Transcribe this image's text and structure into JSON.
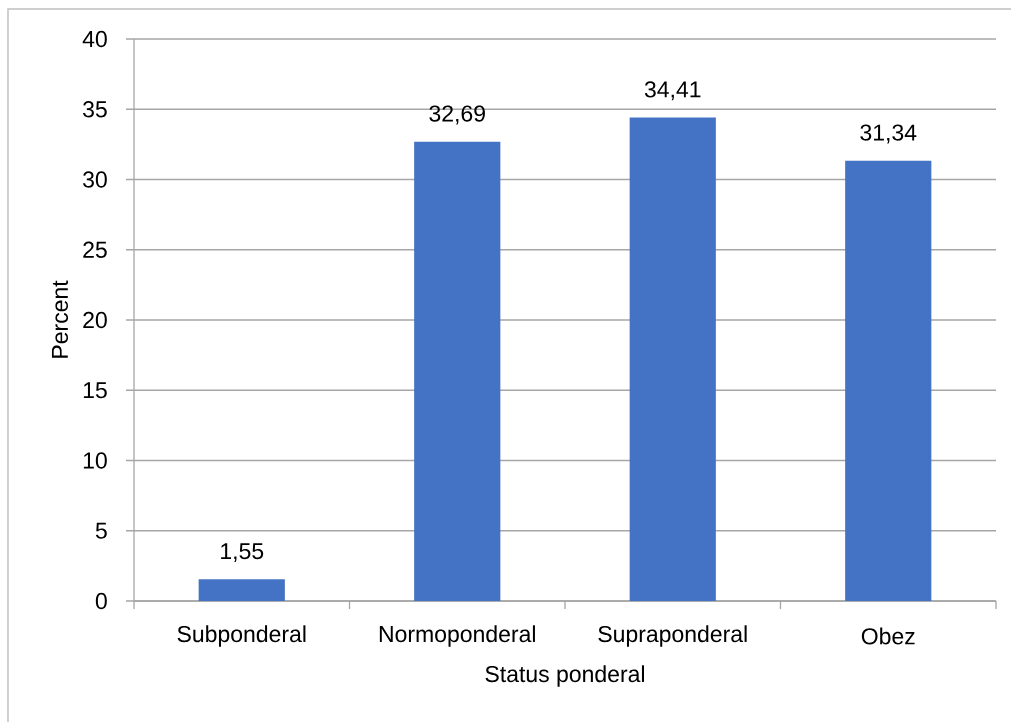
{
  "chart_data": {
    "type": "bar",
    "xlabel": "Status ponderal",
    "ylabel": "Percent",
    "categories": [
      "Subponderal",
      "Normoponderal",
      "Supraponderal",
      "Obez"
    ],
    "values": [
      1.55,
      32.69,
      34.41,
      31.34
    ],
    "value_labels": [
      "1,55",
      "32,69",
      "34,41",
      "31,34"
    ],
    "color": "#4472c4",
    "ylim": [
      0,
      40
    ],
    "yticks": [
      0,
      5,
      10,
      15,
      20,
      25,
      30,
      35,
      40
    ],
    "grid": "y"
  }
}
